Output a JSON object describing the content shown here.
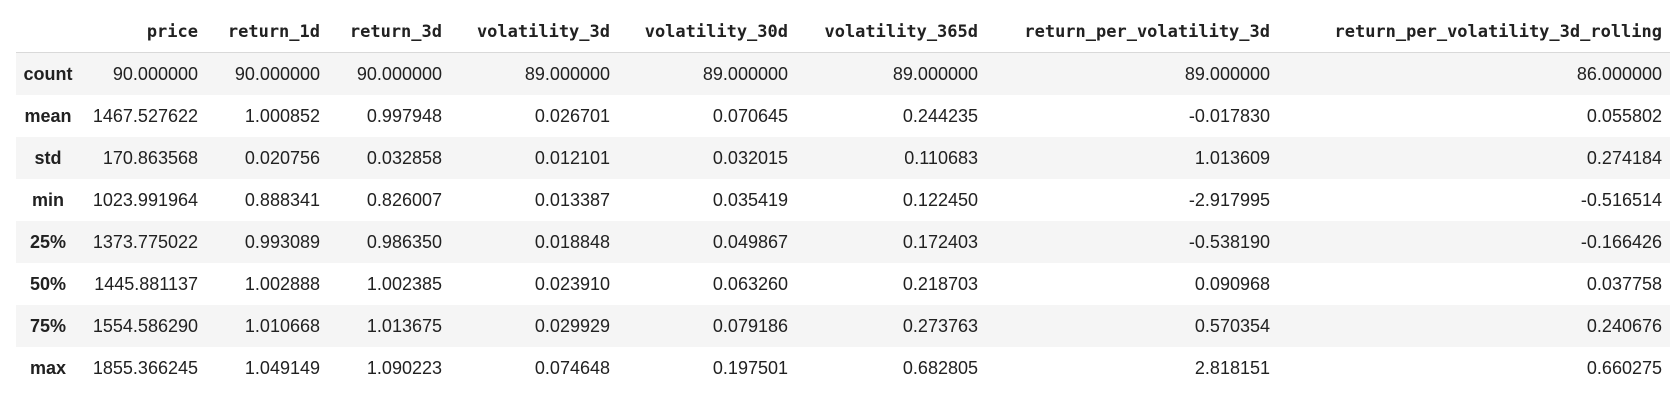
{
  "table": {
    "corner": "",
    "columns": [
      "price",
      "return_1d",
      "return_3d",
      "volatility_3d",
      "volatility_30d",
      "volatility_365d",
      "return_per_volatility_3d",
      "return_per_volatility_3d_rolling"
    ],
    "rows": [
      {
        "label": "count",
        "values": [
          "90.000000",
          "90.000000",
          "90.000000",
          "89.000000",
          "89.000000",
          "89.000000",
          "89.000000",
          "86.000000"
        ]
      },
      {
        "label": "mean",
        "values": [
          "1467.527622",
          "1.000852",
          "0.997948",
          "0.026701",
          "0.070645",
          "0.244235",
          "-0.017830",
          "0.055802"
        ]
      },
      {
        "label": "std",
        "values": [
          "170.863568",
          "0.020756",
          "0.032858",
          "0.012101",
          "0.032015",
          "0.110683",
          "1.013609",
          "0.274184"
        ]
      },
      {
        "label": "min",
        "values": [
          "1023.991964",
          "0.888341",
          "0.826007",
          "0.013387",
          "0.035419",
          "0.122450",
          "-2.917995",
          "-0.516514"
        ]
      },
      {
        "label": "25%",
        "values": [
          "1373.775022",
          "0.993089",
          "0.986350",
          "0.018848",
          "0.049867",
          "0.172403",
          "-0.538190",
          "-0.166426"
        ]
      },
      {
        "label": "50%",
        "values": [
          "1445.881137",
          "1.002888",
          "1.002385",
          "0.023910",
          "0.063260",
          "0.218703",
          "0.090968",
          "0.037758"
        ]
      },
      {
        "label": "75%",
        "values": [
          "1554.586290",
          "1.010668",
          "1.013675",
          "0.029929",
          "0.079186",
          "0.273763",
          "0.570354",
          "0.240676"
        ]
      },
      {
        "label": "max",
        "values": [
          "1855.366245",
          "1.049149",
          "1.090223",
          "0.074648",
          "0.197501",
          "0.682805",
          "2.818151",
          "0.660275"
        ]
      }
    ]
  }
}
